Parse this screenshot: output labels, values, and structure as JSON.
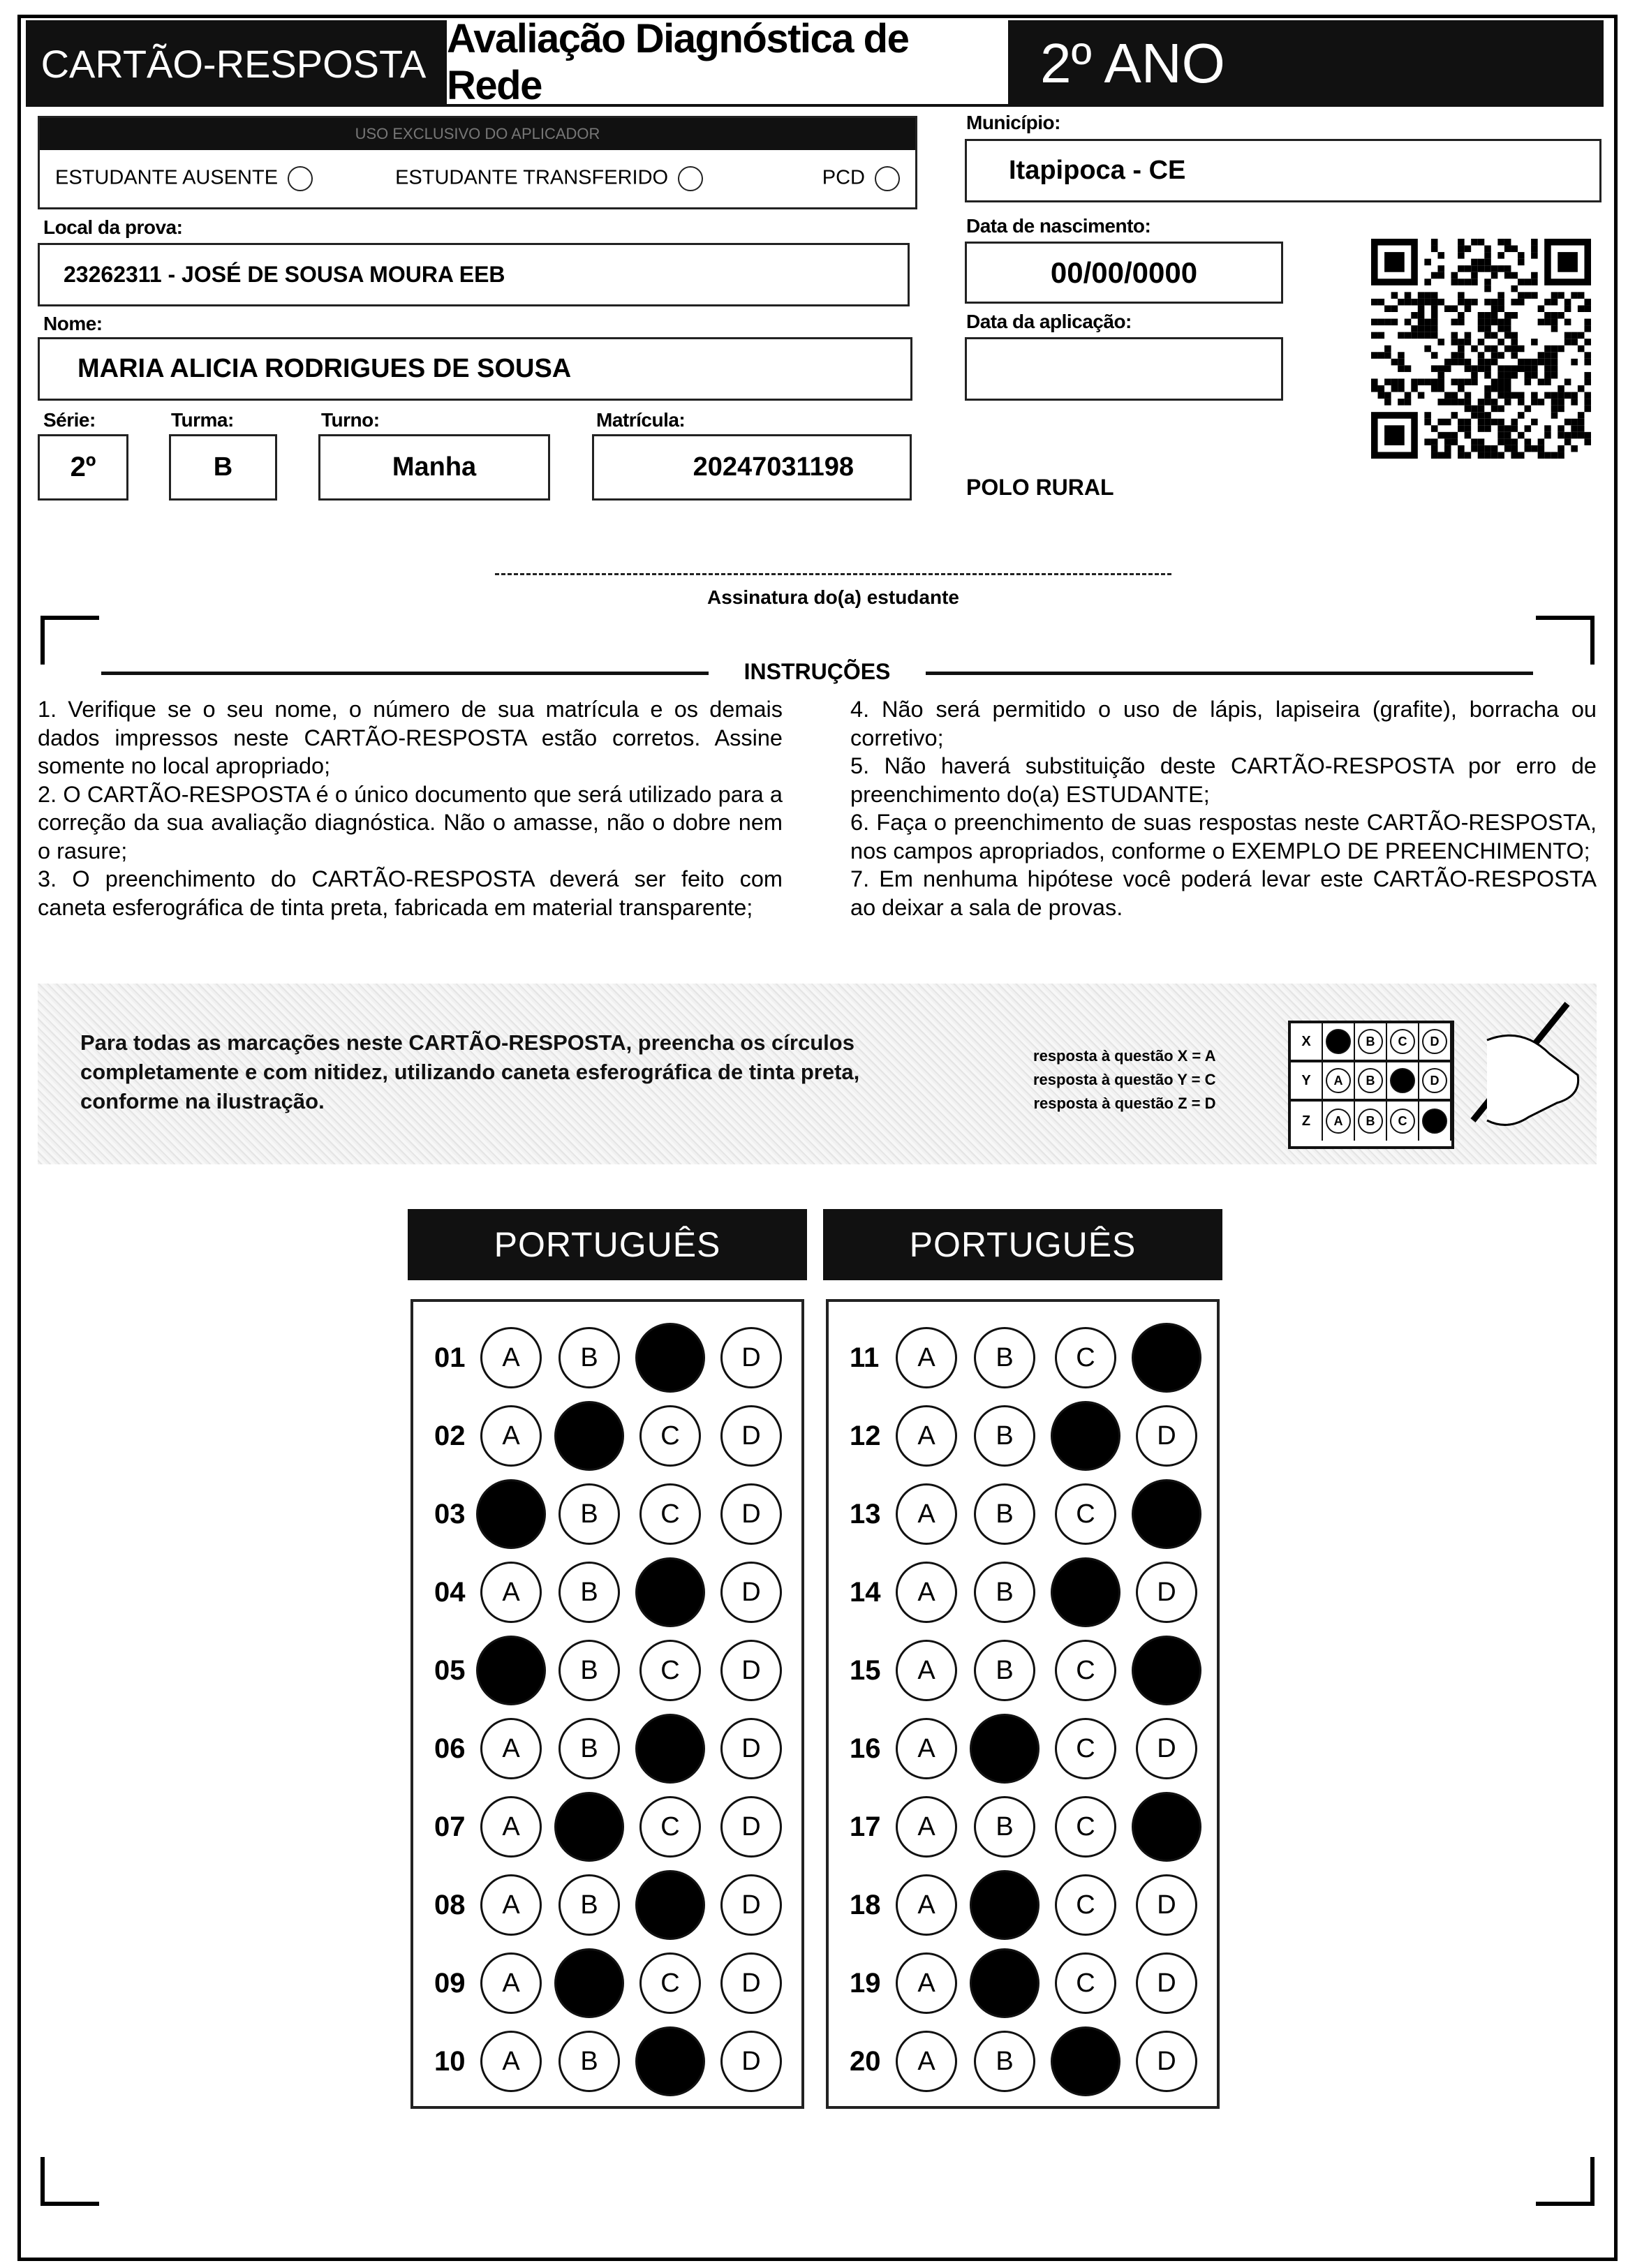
{
  "header": {
    "card_title": "CARTÃO-RESPOSTA",
    "exam_title": "Avaliação Diagnóstica de Rede",
    "grade_title": "2º ANO"
  },
  "applicator": {
    "band_text": "USO EXCLUSIVO DO APLICADOR",
    "options": [
      "ESTUDANTE AUSENTE",
      "ESTUDANTE TRANSFERIDO",
      "PCD"
    ]
  },
  "fields": {
    "municipio_label": "Município:",
    "municipio": "Itapipoca - CE",
    "local_label": "Local da prova:",
    "local": "23262311 - JOSÉ DE SOUSA MOURA EEB",
    "nascimento_label": "Data de nascimento:",
    "nascimento": "00/00/0000",
    "nome_label": "Nome:",
    "nome": "MARIA ALICIA RODRIGUES DE SOUSA",
    "aplicacao_label": "Data da aplicação:",
    "aplicacao": "",
    "serie_label": "Série:",
    "serie": "2º",
    "turma_label": "Turma:",
    "turma": "B",
    "turno_label": "Turno:",
    "turno": "Manha",
    "matricula_label": "Matrícula:",
    "matricula": "20247031198",
    "polo": "POLO RURAL"
  },
  "signature_label": "Assinatura do(a) estudante",
  "instructions": {
    "title": "INSTRUÇÕES",
    "left": [
      "1. Verifique se o seu nome, o número de sua matrícula e os demais dados impressos neste CARTÃO-RESPOSTA estão corretos. Assine somente no local apropriado;",
      "2. O CARTÃO-RESPOSTA é o único documento que será utilizado para a correção da sua avaliação diagnóstica. Não o amasse, não o dobre nem o rasure;",
      "3. O preenchimento do CARTÃO-RESPOSTA deverá ser feito com caneta esferográfica de tinta preta, fabricada em material transparente;"
    ],
    "right": [
      "4. Não será permitido o uso de lápis, lapiseira (grafite), borracha ou corretivo;",
      "5. Não haverá substituição deste CARTÃO-RESPOSTA por erro de preenchimento do(a) ESTUDANTE;",
      "6. Faça o preenchimento de suas respostas neste CARTÃO-RESPOSTA, nos campos apropriados, conforme o EXEMPLO DE PREENCHIMENTO;",
      "7. Em nenhuma hipótese você poderá levar este CARTÃO-RESPOSTA ao deixar a sala de provas."
    ]
  },
  "example": {
    "text": "Para todas as marcações neste CARTÃO-RESPOSTA, preencha os círculos completamente e com nitidez, utilizando caneta esferográfica de tinta preta, conforme na ilustração.",
    "legend": [
      "resposta à questão X = A",
      "resposta à questão Y = C",
      "resposta à questão Z = D"
    ],
    "rows": [
      {
        "q": "X",
        "answer": "A"
      },
      {
        "q": "Y",
        "answer": "C"
      },
      {
        "q": "Z",
        "answer": "D"
      }
    ]
  },
  "options": [
    "A",
    "B",
    "C",
    "D"
  ],
  "blocks": [
    {
      "subject": "PORTUGUÊS",
      "questions": [
        {
          "n": "01",
          "answer": "C"
        },
        {
          "n": "02",
          "answer": "B"
        },
        {
          "n": "03",
          "answer": "A"
        },
        {
          "n": "04",
          "answer": "C"
        },
        {
          "n": "05",
          "answer": "A"
        },
        {
          "n": "06",
          "answer": "C"
        },
        {
          "n": "07",
          "answer": "B"
        },
        {
          "n": "08",
          "answer": "C"
        },
        {
          "n": "09",
          "answer": "B"
        },
        {
          "n": "10",
          "answer": "C"
        }
      ]
    },
    {
      "subject": "PORTUGUÊS",
      "questions": [
        {
          "n": "11",
          "answer": "D"
        },
        {
          "n": "12",
          "answer": "C"
        },
        {
          "n": "13",
          "answer": "D"
        },
        {
          "n": "14",
          "answer": "C"
        },
        {
          "n": "15",
          "answer": "D"
        },
        {
          "n": "16",
          "answer": "B"
        },
        {
          "n": "17",
          "answer": "D"
        },
        {
          "n": "18",
          "answer": "B"
        },
        {
          "n": "19",
          "answer": "B"
        },
        {
          "n": "20",
          "answer": "C"
        }
      ]
    }
  ]
}
